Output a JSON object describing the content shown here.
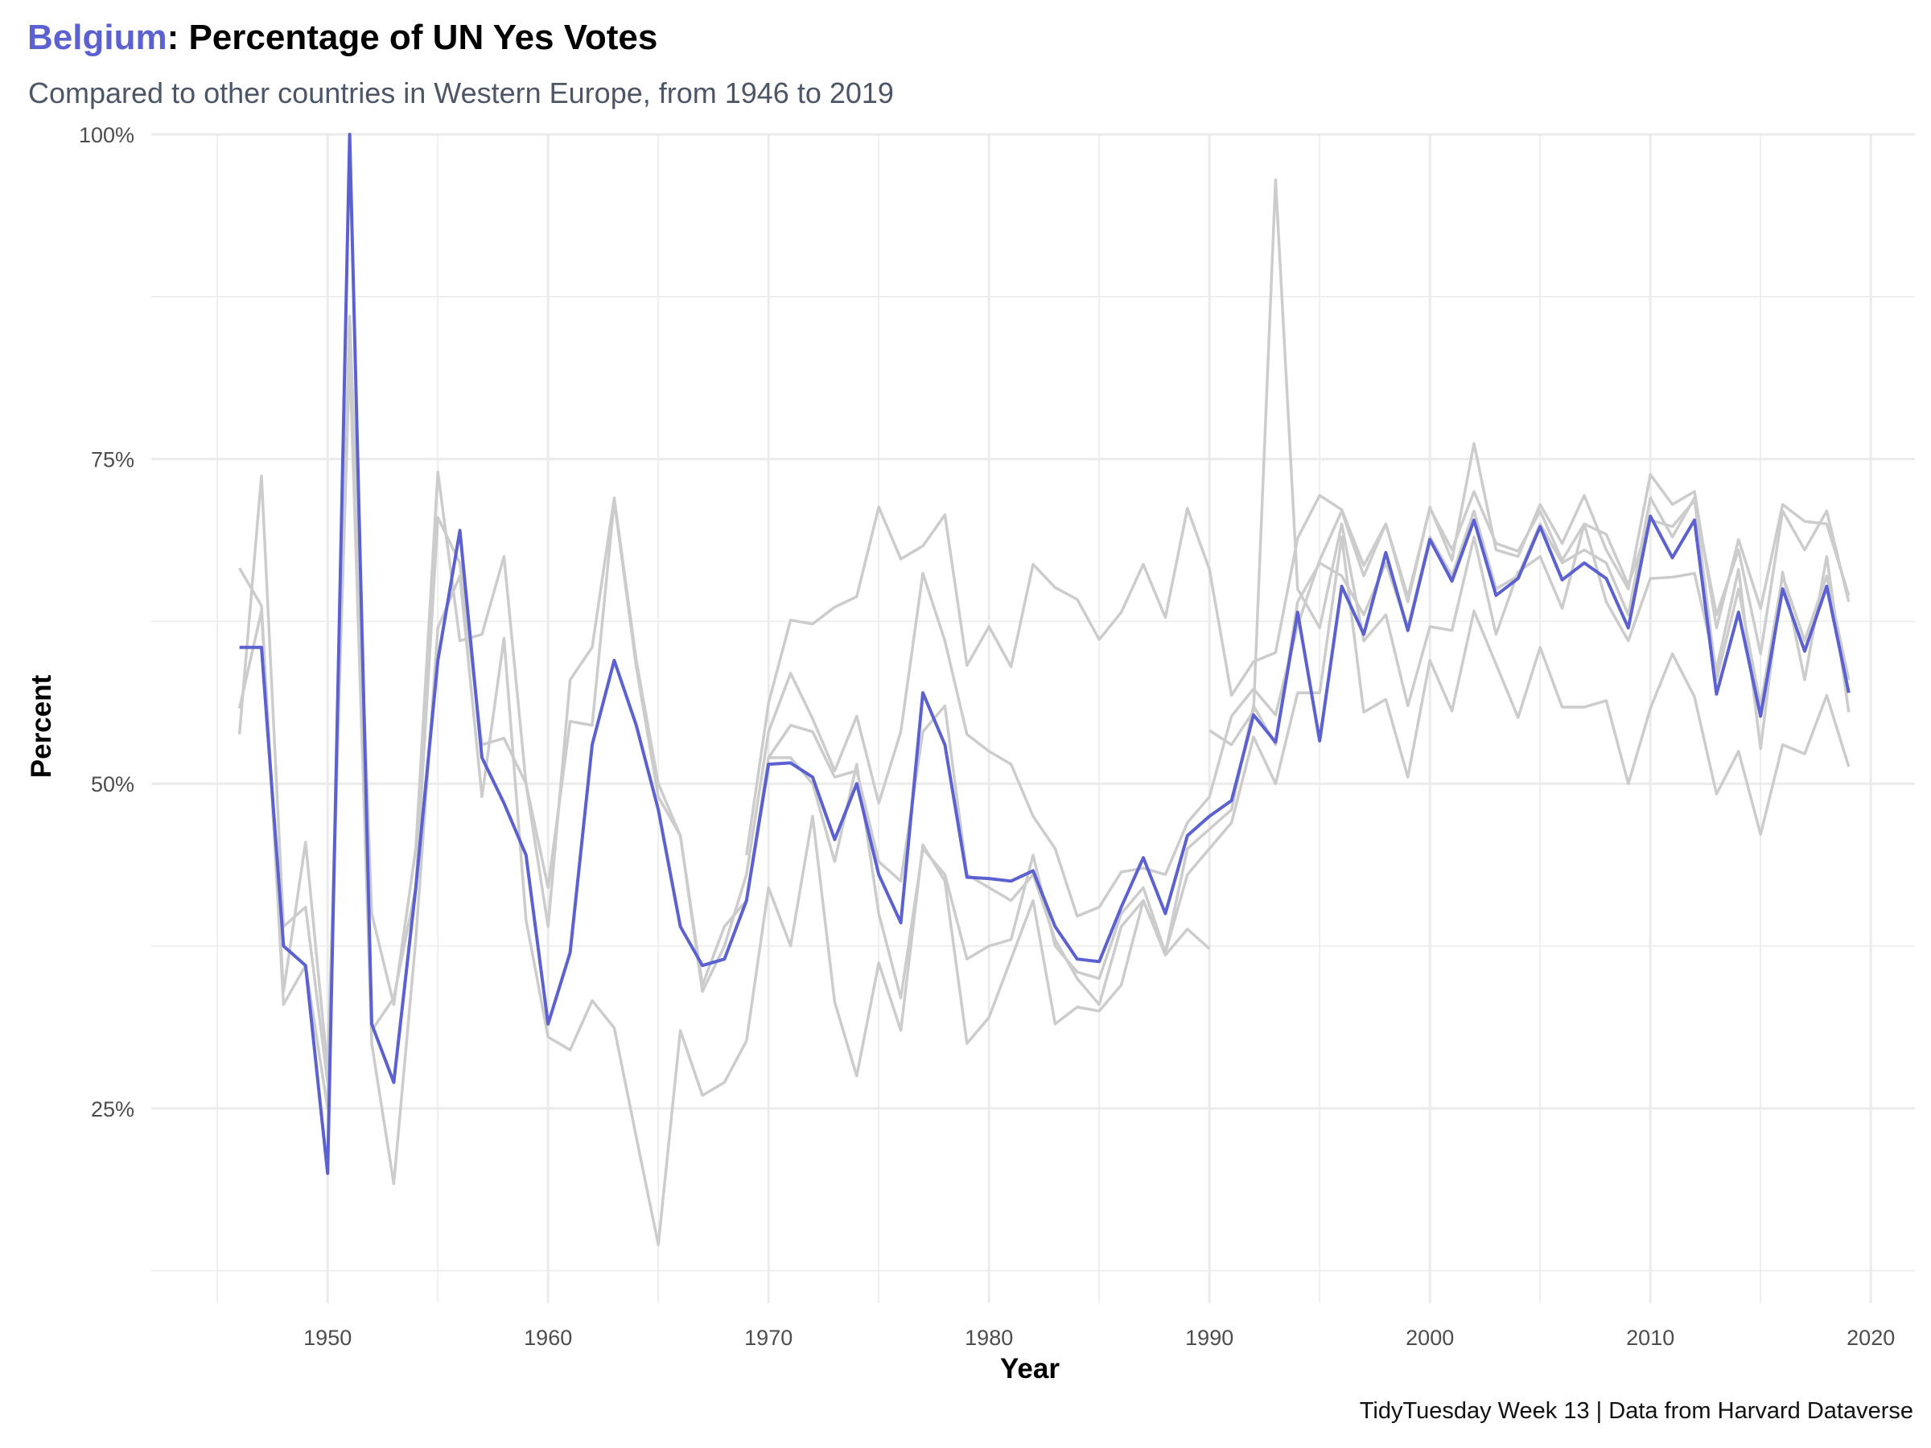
{
  "title": {
    "highlight": "Belgium",
    "rest": ": Percentage of UN Yes Votes"
  },
  "subtitle": "Compared to other countries in Western Europe, from 1946 to 2019",
  "caption": "TidyTuesday Week 13 | Data from Harvard Dataverse",
  "colors": {
    "highlight": "#5b61d1",
    "others": "#cccccc",
    "grid": "#ebebeb"
  },
  "chart_data": {
    "type": "line",
    "xlabel": "Year",
    "ylabel": "Percent",
    "xlim": [
      1942,
      2022
    ],
    "ylim": [
      0.1,
      1.0
    ],
    "x_ticks": [
      1950,
      1960,
      1970,
      1980,
      1990,
      2000,
      2010,
      2020
    ],
    "x_tick_labels": [
      "1950",
      "1960",
      "1970",
      "1980",
      "1990",
      "2000",
      "2010",
      "2020"
    ],
    "y_ticks": [
      0.25,
      0.5,
      0.75,
      1.0
    ],
    "y_tick_labels": [
      "25%",
      "50%",
      "75%",
      "100%"
    ],
    "grid": true,
    "legend": "none",
    "highlight_series": {
      "name": "Belgium",
      "x": [
        1946,
        1947,
        1948,
        1949,
        1950,
        1951,
        1952,
        1953,
        1954,
        1955,
        1956,
        1957,
        1958,
        1959,
        1960,
        1961,
        1962,
        1963,
        1964,
        1965,
        1966,
        1967,
        1968,
        1969,
        1970,
        1971,
        1972,
        1973,
        1974,
        1975,
        1976,
        1977,
        1978,
        1979,
        1980,
        1981,
        1982,
        1983,
        1984,
        1985,
        1986,
        1987,
        1988,
        1989,
        1990,
        1991,
        1992,
        1993,
        1994,
        1995,
        1996,
        1997,
        1998,
        1999,
        2000,
        2001,
        2002,
        2003,
        2004,
        2005,
        2006,
        2007,
        2008,
        2009,
        2010,
        2011,
        2012,
        2013,
        2014,
        2015,
        2016,
        2017,
        2018,
        2019
      ],
      "y": [
        0.605,
        0.605,
        0.375,
        0.36,
        0.2,
        1.0,
        0.315,
        0.27,
        0.42,
        0.595,
        0.695,
        0.52,
        0.485,
        0.445,
        0.315,
        0.37,
        0.53,
        0.595,
        0.545,
        0.48,
        0.39,
        0.36,
        0.365,
        0.41,
        0.515,
        0.516,
        0.505,
        0.457,
        0.5,
        0.43,
        0.393,
        0.57,
        0.53,
        0.428,
        0.427,
        0.425,
        0.433,
        0.39,
        0.365,
        0.363,
        0.405,
        0.443,
        0.4,
        0.46,
        0.475,
        0.487,
        0.553,
        0.532,
        0.632,
        0.533,
        0.652,
        0.615,
        0.678,
        0.618,
        0.688,
        0.656,
        0.703,
        0.645,
        0.658,
        0.698,
        0.657,
        0.67,
        0.658,
        0.62,
        0.706,
        0.674,
        0.703,
        0.569,
        0.632,
        0.552,
        0.65,
        0.602,
        0.652,
        0.57
      ]
    },
    "other_series": [
      {
        "x": [
          1946,
          1947,
          1948,
          1949,
          1950,
          1951,
          1952,
          1953,
          1954,
          1955,
          1956,
          1957,
          1958,
          1959,
          1960,
          1961,
          1962,
          1963,
          1964,
          1965,
          1966,
          1967,
          1968,
          1969,
          1970,
          1971,
          1972,
          1973,
          1974,
          1975,
          1976,
          1977,
          1978,
          1979,
          1980,
          1981,
          1982,
          1983,
          1984,
          1985,
          1986,
          1987,
          1988,
          1989,
          1990,
          1991,
          1992,
          1993,
          1994,
          1995,
          1996,
          1997,
          1998,
          1999,
          2000,
          2001,
          2002,
          2003,
          2004,
          2005,
          2006,
          2007,
          2008,
          2009,
          2010,
          2011,
          2012,
          2013,
          2014,
          2015,
          2016,
          2017,
          2018,
          2019
        ],
        "y": [
          0.666,
          0.637,
          0.33,
          0.36,
          0.25,
          0.86,
          0.31,
          0.335,
          0.42,
          0.705,
          0.67,
          0.53,
          0.535,
          0.5,
          0.39,
          0.58,
          0.605,
          0.72,
          0.595,
          0.5,
          0.46,
          0.345,
          0.39,
          0.41,
          0.52,
          0.545,
          0.54,
          0.505,
          0.51,
          0.44,
          0.425,
          0.54,
          0.56,
          0.43,
          0.42,
          0.41,
          0.43,
          0.38,
          0.35,
          0.33,
          0.39,
          0.41,
          0.37,
          0.45,
          0.465,
          0.48,
          0.56,
          0.53,
          0.64,
          0.67,
          0.66,
          0.63,
          0.67,
          0.62,
          0.69,
          0.66,
          0.71,
          0.65,
          0.66,
          0.7,
          0.67,
          0.68,
          0.67,
          0.63,
          0.72,
          0.69,
          0.72,
          0.58,
          0.65,
          0.56,
          0.66,
          0.61,
          0.66,
          0.58
        ]
      },
      {
        "x": [
          1946,
          1947,
          1948,
          1949,
          1950,
          1951,
          1952,
          1953,
          1954,
          1955,
          1956,
          1957,
          1958,
          1959,
          1960,
          1961,
          1962,
          1963,
          1964,
          1965,
          1966,
          1967,
          1968,
          1969,
          1970,
          1971,
          1972,
          1973,
          1974,
          1975,
          1976,
          1977,
          1978,
          1979,
          1980,
          1981,
          1982,
          1983,
          1984,
          1985,
          1986,
          1987,
          1988,
          1989,
          1990,
          1991,
          1992,
          1993,
          1994,
          1995,
          1996,
          1997,
          1998,
          1999,
          2000,
          2001,
          2002,
          2003,
          2004,
          2005,
          2006,
          2007,
          2008,
          2009,
          2010,
          2011,
          2012,
          2013,
          2014,
          2015,
          2016,
          2017,
          2018,
          2019
        ],
        "y": [
          0.538,
          0.737,
          0.39,
          0.405,
          0.27,
          0.86,
          0.4,
          0.33,
          0.45,
          0.74,
          0.61,
          0.615,
          0.675,
          0.5,
          0.42,
          0.548,
          0.545,
          0.718,
          0.59,
          0.49,
          0.46,
          0.34,
          0.375,
          0.43,
          0.54,
          0.585,
          0.55,
          0.51,
          0.552,
          0.485,
          0.54,
          0.662,
          0.61,
          0.538,
          0.525,
          0.515,
          0.475,
          0.45,
          0.398,
          0.405,
          0.432,
          0.435,
          0.43,
          0.47,
          0.49,
          0.552,
          0.573,
          0.553,
          0.622,
          0.672,
          0.71,
          0.66,
          0.7,
          0.64,
          0.713,
          0.672,
          0.762,
          0.68,
          0.675,
          0.715,
          0.685,
          0.722,
          0.68,
          0.65,
          0.738,
          0.715,
          0.725,
          0.62,
          0.688,
          0.635,
          0.715,
          0.702,
          0.7,
          0.645
        ]
      },
      {
        "x": [
          1946,
          1947,
          1948,
          1949,
          1950,
          1951,
          1952,
          1953,
          1954,
          1955,
          1956,
          1957,
          1958,
          1959,
          1960,
          1961,
          1962,
          1963,
          1964,
          1965,
          1966,
          1967,
          1968,
          1969,
          1970,
          1971,
          1972,
          1973,
          1974,
          1975,
          1976,
          1977,
          1978,
          1979,
          1980,
          1981,
          1982,
          1983,
          1984,
          1985,
          1986,
          1987,
          1988,
          1989,
          1990
        ],
        "y": [
          0.558,
          0.633,
          0.34,
          0.455,
          0.28,
          0.83,
          0.3,
          0.192,
          0.38,
          0.62,
          0.66,
          0.49,
          0.612,
          0.395,
          0.305,
          0.295,
          0.333,
          0.312,
          0.228,
          0.145,
          0.31,
          0.26,
          0.27,
          0.302,
          0.42,
          0.375,
          0.475,
          0.332,
          0.275,
          0.362,
          0.31,
          0.453,
          0.425,
          0.3,
          0.32,
          0.365,
          0.41,
          0.315,
          0.328,
          0.325,
          0.345,
          0.41,
          0.368,
          0.388,
          0.373
        ]
      },
      {
        "x": [
          1969,
          1970,
          1971,
          1972,
          1973,
          1974,
          1975,
          1976,
          1977,
          1978,
          1979,
          1980,
          1981,
          1982,
          1983,
          1984,
          1985,
          1986,
          1987,
          1988,
          1989,
          1990,
          1991,
          1992,
          1993,
          1994,
          1995,
          1996,
          1997,
          1998,
          1999,
          2000,
          2001,
          2002,
          2003,
          2004,
          2005,
          2006,
          2007,
          2008,
          2009,
          2010,
          2011,
          2012,
          2013,
          2014,
          2015,
          2016,
          2017,
          2018,
          2019
        ],
        "y": [
          0.445,
          0.562,
          0.626,
          0.623,
          0.636,
          0.644,
          0.713,
          0.673,
          0.683,
          0.707,
          0.591,
          0.621,
          0.59,
          0.669,
          0.651,
          0.642,
          0.611,
          0.632,
          0.669,
          0.628,
          0.712,
          0.665,
          0.568,
          0.594,
          0.601,
          0.689,
          0.722,
          0.711,
          0.668,
          0.7,
          0.644,
          0.712,
          0.68,
          0.725,
          0.685,
          0.679,
          0.71,
          0.672,
          0.7,
          0.692,
          0.653,
          0.703,
          0.698,
          0.718,
          0.63,
          0.68,
          0.6,
          0.71,
          0.68,
          0.71,
          0.64
        ]
      },
      {
        "x": [
          1970,
          1971,
          1972,
          1973,
          1974,
          1975,
          1976,
          1977,
          1978,
          1979,
          1980,
          1981,
          1982,
          1983,
          1984,
          1985,
          1986,
          1987,
          1988,
          1989,
          1990,
          1991,
          1992,
          1993,
          1994,
          1995,
          1996,
          1997,
          1998,
          1999,
          2000,
          2001,
          2002,
          2003,
          2004,
          2005,
          2006,
          2007,
          2008,
          2009,
          2010,
          2011,
          2012,
          2013,
          2014,
          2015,
          2016,
          2017,
          2018,
          2019
        ],
        "y": [
          0.52,
          0.52,
          0.5,
          0.44,
          0.515,
          0.4,
          0.335,
          0.45,
          0.43,
          0.365,
          0.375,
          0.38,
          0.445,
          0.375,
          0.355,
          0.35,
          0.4,
          0.42,
          0.37,
          0.43,
          0.45,
          0.47,
          0.536,
          0.5,
          0.57,
          0.57,
          0.69,
          0.555,
          0.565,
          0.505,
          0.595,
          0.556,
          0.633,
          0.592,
          0.551,
          0.605,
          0.559,
          0.559,
          0.564,
          0.5,
          0.558,
          0.6,
          0.567,
          0.492,
          0.525,
          0.461,
          0.53,
          0.523,
          0.568,
          0.513
        ]
      },
      {
        "x": [
          1990,
          1991,
          1992,
          1993,
          1994,
          1995,
          1996,
          1997,
          1998,
          1999,
          2000,
          2001,
          2002,
          2003,
          2004,
          2005,
          2006,
          2007,
          2008,
          2009,
          2010,
          2011,
          2012,
          2013,
          2014,
          2015,
          2016,
          2017,
          2018,
          2019
        ],
        "y": [
          0.541,
          0.53,
          0.556,
          0.965,
          0.65,
          0.62,
          0.7,
          0.61,
          0.63,
          0.56,
          0.621,
          0.618,
          0.69,
          0.615,
          0.663,
          0.675,
          0.635,
          0.7,
          0.64,
          0.61,
          0.658,
          0.659,
          0.662,
          0.588,
          0.665,
          0.527,
          0.663,
          0.58,
          0.675,
          0.555
        ]
      }
    ]
  }
}
